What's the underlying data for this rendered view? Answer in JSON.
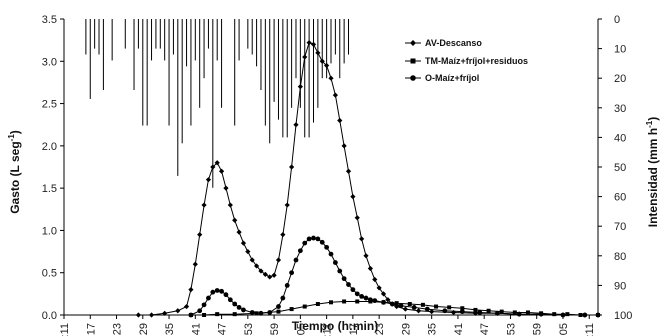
{
  "chart_data": {
    "type": "line",
    "title": "",
    "xlabel": "Tiempo (h:min)",
    "ylabel": "Gasto (L seg",
    "ylabel_sup": "-1",
    "ylabel_end": ")",
    "y2label": "Intensidad (mm h",
    "y2label_sup": "-1",
    "y2label_end": ")",
    "ylim": [
      0,
      3.5
    ],
    "y2lim": [
      0,
      100
    ],
    "y2_inverted": true,
    "grid": false,
    "legend_position": "top-right",
    "x_ticks": [
      "13:11",
      "13:17",
      "13:23",
      "13:29",
      "13:35",
      "13:41",
      "13:47",
      "13:53",
      "13:59",
      "14:05",
      "14:11",
      "14:17",
      "14:23",
      "14:29",
      "14:35",
      "14:41",
      "14:47",
      "14:53",
      "14:59",
      "15:05",
      "15:11"
    ],
    "y_ticks": [
      "0.0",
      "0.5",
      "1.0",
      "1.5",
      "2.0",
      "2.5",
      "3.0",
      "3.5"
    ],
    "y2_ticks": [
      "0",
      "10",
      "20",
      "30",
      "40",
      "50",
      "60",
      "70",
      "80",
      "90",
      "100"
    ],
    "x_range": [
      "13:11",
      "15:13"
    ],
    "series": [
      {
        "name": "AV-Descanso",
        "marker": "diamond",
        "x": [
          "13:28",
          "13:31",
          "13:34",
          "13:37",
          "13:39",
          "13:40",
          "13:41",
          "13:42",
          "13:43",
          "13:44",
          "13:45",
          "13:46",
          "13:47",
          "13:48",
          "13:49",
          "13:50",
          "13:51",
          "13:52",
          "13:53",
          "13:54",
          "13:55",
          "13:56",
          "13:57",
          "13:58",
          "13:59",
          "14:00",
          "14:01",
          "14:02",
          "14:03",
          "14:04",
          "14:05",
          "14:06",
          "14:07",
          "14:08",
          "14:09",
          "14:10",
          "14:11",
          "14:12",
          "14:13",
          "14:14",
          "14:15",
          "14:16",
          "14:17",
          "14:18",
          "14:19",
          "14:20",
          "14:21",
          "14:22",
          "14:23",
          "14:24",
          "14:25",
          "14:26",
          "14:27",
          "14:29",
          "14:32",
          "14:35",
          "14:40",
          "14:45",
          "14:50",
          "14:55",
          "15:00",
          "15:05",
          "15:10",
          "15:13"
        ],
        "y": [
          0.0,
          0.0,
          0.02,
          0.05,
          0.1,
          0.3,
          0.6,
          0.95,
          1.3,
          1.6,
          1.75,
          1.8,
          1.7,
          1.5,
          1.3,
          1.12,
          0.98,
          0.85,
          0.75,
          0.65,
          0.58,
          0.52,
          0.48,
          0.45,
          0.47,
          0.65,
          0.95,
          1.3,
          1.75,
          2.25,
          2.7,
          3.05,
          3.22,
          3.2,
          3.1,
          3.0,
          2.95,
          2.8,
          2.6,
          2.3,
          2.0,
          1.7,
          1.4,
          1.15,
          0.9,
          0.7,
          0.55,
          0.42,
          0.32,
          0.25,
          0.18,
          0.13,
          0.1,
          0.07,
          0.05,
          0.04,
          0.03,
          0.02,
          0.02,
          0.01,
          0.01,
          0.0,
          0.0,
          0.0
        ]
      },
      {
        "name": "TM-Maíz+fríjol+residuos",
        "marker": "square",
        "x": [
          "13:40",
          "13:43",
          "13:46",
          "13:50",
          "13:55",
          "14:00",
          "14:03",
          "14:06",
          "14:09",
          "14:12",
          "14:15",
          "14:18",
          "14:21",
          "14:24",
          "14:27",
          "14:30",
          "14:33",
          "14:36",
          "14:39",
          "14:42",
          "14:45",
          "14:48",
          "14:51",
          "14:54",
          "14:57",
          "15:00",
          "15:03",
          "15:06",
          "15:09",
          "15:13"
        ],
        "y": [
          0.0,
          0.0,
          0.01,
          0.01,
          0.02,
          0.04,
          0.07,
          0.1,
          0.13,
          0.15,
          0.16,
          0.16,
          0.16,
          0.15,
          0.14,
          0.13,
          0.12,
          0.1,
          0.09,
          0.08,
          0.06,
          0.05,
          0.04,
          0.03,
          0.03,
          0.02,
          0.01,
          0.01,
          0.0,
          0.0
        ]
      },
      {
        "name": "O-Maíz+fríjol",
        "marker": "circle",
        "x": [
          "13:40",
          "13:42",
          "13:43",
          "13:44",
          "13:45",
          "13:46",
          "13:47",
          "13:48",
          "13:49",
          "13:50",
          "13:51",
          "13:52",
          "13:54",
          "13:56",
          "13:58",
          "14:00",
          "14:01",
          "14:02",
          "14:03",
          "14:04",
          "14:05",
          "14:06",
          "14:07",
          "14:08",
          "14:09",
          "14:10",
          "14:11",
          "14:12",
          "14:13",
          "14:14",
          "14:15",
          "14:16",
          "14:17",
          "14:18",
          "14:19",
          "14:20",
          "14:21",
          "14:22",
          "14:24",
          "14:26",
          "14:28",
          "14:31",
          "14:34",
          "14:38",
          "14:42",
          "14:46",
          "14:50",
          "14:55",
          "15:00",
          "15:05",
          "15:10",
          "15:13"
        ],
        "y": [
          0.0,
          0.05,
          0.12,
          0.2,
          0.27,
          0.29,
          0.28,
          0.24,
          0.18,
          0.13,
          0.09,
          0.06,
          0.03,
          0.02,
          0.03,
          0.1,
          0.2,
          0.35,
          0.5,
          0.65,
          0.76,
          0.85,
          0.9,
          0.91,
          0.9,
          0.86,
          0.8,
          0.72,
          0.62,
          0.52,
          0.43,
          0.36,
          0.3,
          0.25,
          0.22,
          0.2,
          0.18,
          0.17,
          0.15,
          0.13,
          0.11,
          0.09,
          0.07,
          0.05,
          0.04,
          0.03,
          0.02,
          0.01,
          0.01,
          0.0,
          0.0,
          0.0
        ]
      }
    ],
    "rainfall_bars": {
      "axis": "y2",
      "x": [
        "13:16",
        "13:17",
        "13:18",
        "13:19",
        "13:20",
        "13:22",
        "13:25",
        "13:27",
        "13:28",
        "13:29",
        "13:30",
        "13:31",
        "13:32",
        "13:33",
        "13:34",
        "13:35",
        "13:36",
        "13:37",
        "13:38",
        "13:39",
        "13:40",
        "13:41",
        "13:42",
        "13:43",
        "13:44",
        "13:45",
        "13:46",
        "13:47",
        "13:50",
        "13:51",
        "13:53",
        "13:54",
        "13:55",
        "13:56",
        "13:57",
        "13:58",
        "13:59",
        "14:00",
        "14:01",
        "14:02",
        "14:03",
        "14:04",
        "14:05",
        "14:06",
        "14:07",
        "14:08",
        "14:09",
        "14:10",
        "14:11",
        "14:12",
        "14:13",
        "14:14",
        "14:15",
        "14:16"
      ],
      "intensity": [
        12,
        27,
        10,
        12,
        24,
        14,
        10,
        24,
        10,
        36,
        36,
        14,
        10,
        10,
        14,
        36,
        12,
        53,
        42,
        16,
        36,
        14,
        30,
        20,
        10,
        57,
        14,
        30,
        36,
        14,
        10,
        12,
        16,
        24,
        36,
        42,
        28,
        34,
        40,
        40,
        30,
        20,
        30,
        40,
        40,
        35,
        30,
        20,
        20,
        15,
        12,
        20,
        15,
        12
      ]
    }
  }
}
